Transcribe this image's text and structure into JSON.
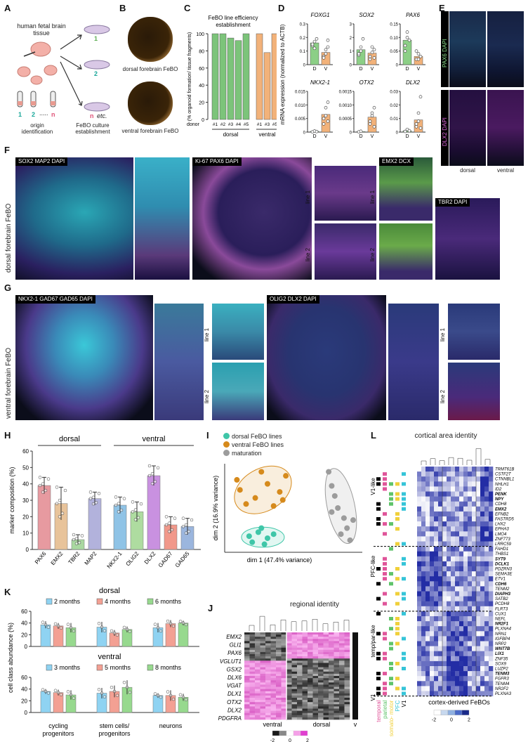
{
  "panels": {
    "A": "A",
    "B": "B",
    "C": "C",
    "D": "D",
    "E": "E",
    "F": "F",
    "G": "G",
    "H": "H",
    "I": "I",
    "J": "J",
    "K": "K",
    "L": "L"
  },
  "A": {
    "tissue": "human fetal brain tissue",
    "n1": "1",
    "n2": "2",
    "dots": ".....",
    "nn": "n",
    "origin": "origin identification",
    "dish_1": "1",
    "dish_2": "2",
    "dish_n": "n",
    "dish_etc": "etc.",
    "culture": "FeBO culture establishment"
  },
  "B": {
    "dorsal": "dorsal forebrain FeBO",
    "ventral": "ventral forebrain FeBO"
  },
  "E": {
    "top_label": "PAX6 DAPI",
    "bottom_label": "DLX2 DAPI",
    "x_dorsal": "dorsal",
    "x_ventral": "ventral"
  },
  "F": {
    "row_label": "dorsal forebrain FeBO",
    "p1_label": "SOX2 MAP2 DAPI",
    "p2_label": "Ki-67 PAX6 DAPI",
    "p3_label": "EMX2 DCX",
    "p4_label": "TBR2 DAPI",
    "line1": "line 1",
    "line2": "line 2"
  },
  "G": {
    "row_label": "ventral forebrain FeBO",
    "p1_label": "NKX2-1 GAD67 GAD65 DAPI",
    "p2_label": "OLIG2 DLX2 DAPI",
    "line1": "line 1",
    "line2": "line 2"
  },
  "I": {
    "legend": [
      "dorsal FeBO lines",
      "ventral FeBO lines",
      "maturation"
    ],
    "xlabel": "dim 1 (47.4% variance)",
    "ylabel": "dim 2 (16.9% variance)"
  },
  "J": {
    "title": "regional identity",
    "genes": [
      "EMX2",
      "GLI1",
      "PAX6",
      "VGLUT1",
      "GSX2",
      "DLX6",
      "VGAT",
      "DLX1",
      "OTX2",
      "DLX2",
      "PDGFRA"
    ],
    "x_ventral": "ventral",
    "x_dorsal": "dorsal",
    "x_v": "v",
    "scale": [
      "-2",
      "0",
      "2"
    ]
  },
  "L": {
    "title": "cortical area identity",
    "groups": [
      "V1-like",
      "PFC-like",
      "temp/par-like",
      "V1"
    ],
    "xlabels": [
      "temporal",
      "parietal",
      "somato- motor",
      "PFC",
      "V1"
    ],
    "xtitle": "cortex-derived FeBOs",
    "scale": [
      "-2",
      "0",
      "2"
    ],
    "genes": [
      "TRMT61B",
      "CSTF2T",
      "CTNNBL1",
      "NHLH1",
      "ID2",
      "PENK",
      "NPY",
      "CDH8",
      "EMX2",
      "EFNB2",
      "FASTRD5",
      "LHX2",
      "EPHA3",
      "LMO4",
      "ZNF773",
      "LRRC59",
      "FAHD1",
      "THBS1",
      "SYT9",
      "DCLK1",
      "PDZRN3",
      "SEMA3E",
      "ETV1",
      "CDH6",
      "TENM2",
      "DIAPH3",
      "SATB2",
      "PCDH8",
      "FLRT3",
      "CUX1",
      "NEFL",
      "NR2F1",
      "PLXNA4",
      "NRN1",
      "IGFBP4",
      "NRP2",
      "WNT7B",
      "LIX1",
      "ZNF35",
      "SOX9",
      "LUZP2",
      "TENM3",
      "FGFR3",
      "TENM4",
      "NR2F2",
      "PLXNA3"
    ],
    "bold_genes": [
      "PENK",
      "NPY",
      "EMX2",
      "SYT9",
      "DCLK1",
      "CDH6",
      "DIAPH3",
      "WNT7B",
      "LIX1",
      "TENM3",
      "NR2F1"
    ]
  },
  "chart_data": [
    {
      "panel": "C",
      "type": "bar",
      "title": "FeBO line efficiency establishment",
      "ylabel": "(% organoid formation/ tissue fragments)",
      "xlabel": "donor",
      "categories": [
        "#1",
        "#2",
        "#3",
        "#4",
        "#5",
        "#1",
        "#3",
        "#5"
      ],
      "groups": [
        "dorsal",
        "ventral"
      ],
      "group_of": [
        0,
        0,
        0,
        0,
        0,
        1,
        1,
        1
      ],
      "values": [
        100,
        100,
        95,
        92,
        100,
        100,
        78,
        100
      ],
      "colors": {
        "dorsal": "#7cc47a",
        "ventral": "#f2b27a"
      },
      "yticks": [
        "0",
        "20",
        "40",
        "60",
        "80",
        "100"
      ],
      "ylim": [
        0,
        100
      ]
    },
    {
      "panel": "D",
      "type": "bar",
      "ylabel": "mRNA expression (normalized to ACTB)",
      "subplots": [
        {
          "gene": "FOXG1",
          "ylim": [
            0,
            0.3
          ],
          "yticks": [
            "0",
            "0.1",
            "0.2",
            "0.3"
          ],
          "categories": [
            "D",
            "V"
          ],
          "values": [
            0.16,
            0.09
          ],
          "points": [
            [
              0.14,
              0.17,
              0.19,
              0.15,
              0.12
            ],
            [
              0.06,
              0.11,
              0.18,
              0.05,
              0.08,
              0.13
            ]
          ]
        },
        {
          "gene": "SOX2",
          "ylim": [
            0,
            3
          ],
          "yticks": [
            "0",
            "1",
            "2",
            "3"
          ],
          "categories": [
            "D",
            "V"
          ],
          "values": [
            1.1,
            0.85
          ],
          "points": [
            [
              0.7,
              1.3,
              1.9,
              0.8,
              1.0
            ],
            [
              0.4,
              0.9,
              1.1,
              0.6,
              1.3,
              0.5
            ]
          ]
        },
        {
          "gene": "PAX6",
          "ylim": [
            0,
            0.15
          ],
          "yticks": [
            "0",
            "0.05",
            "0.10",
            "0.15"
          ],
          "categories": [
            "D",
            "V"
          ],
          "values": [
            0.09,
            0.03
          ],
          "points": [
            [
              0.07,
              0.12,
              0.09,
              0.05,
              0.1
            ],
            [
              0.02,
              0.04,
              0.03,
              0.05,
              0.02
            ]
          ]
        },
        {
          "gene": "NKX2-1",
          "ylim": [
            0,
            0.015
          ],
          "yticks": [
            "0",
            "0.005",
            "0.010",
            "0.015"
          ],
          "categories": [
            "D",
            "V"
          ],
          "values": [
            0.0003,
            0.0065
          ],
          "points": [
            [
              0.0001,
              0.0004,
              0.0002
            ],
            [
              0.003,
              0.009,
              0.011,
              0.005,
              0.006,
              0.004
            ]
          ]
        },
        {
          "gene": "OTX2",
          "ylim": [
            0,
            0.0015
          ],
          "yticks": [
            "0",
            "0.0005",
            "0.0010",
            "0.0015"
          ],
          "categories": [
            "D",
            "V"
          ],
          "values": [
            2e-05,
            0.00055
          ],
          "points": [
            [
              1e-05,
              3e-05
            ],
            [
              0.0003,
              0.0007,
              0.0009,
              0.0004,
              0.0006,
              0.0002
            ]
          ]
        },
        {
          "gene": "DLX2",
          "ylim": [
            0,
            0.03
          ],
          "yticks": [
            "0",
            "0.01",
            "0.02",
            "0.03"
          ],
          "categories": [
            "D",
            "V"
          ],
          "values": [
            0.001,
            0.009
          ],
          "points": [
            [
              0.0005,
              0.002,
              0.001
            ],
            [
              0.004,
              0.014,
              0.026,
              0.006,
              0.008,
              0.003
            ]
          ]
        }
      ]
    },
    {
      "panel": "H",
      "type": "bar",
      "ylabel": "marker composition (%)",
      "groups": [
        "dorsal",
        "ventral"
      ],
      "categories": [
        "PAX6",
        "EMX2",
        "TBR2",
        "MAP2",
        "NKX2-1",
        "OLIG2",
        "DLX2",
        "GAD67",
        "GAD65"
      ],
      "values": [
        39,
        28,
        6,
        31,
        27,
        23,
        45,
        15,
        14
      ],
      "errors": [
        5,
        10,
        3,
        4,
        5,
        6,
        6,
        5,
        5
      ],
      "colors": [
        "#e79aa0",
        "#e8c39a",
        "#a9d8a0",
        "#b2b2dc",
        "#8fc3e6",
        "#aedca0",
        "#c991e0",
        "#f1988a",
        "#9bb6de"
      ],
      "yticks": [
        "0",
        "10",
        "20",
        "30",
        "40",
        "50",
        "60"
      ],
      "ylim": [
        0,
        60
      ]
    },
    {
      "panel": "I",
      "type": "scatter",
      "xlabel": "dim 1 (47.4% variance)",
      "ylabel": "dim 2 (16.9% variance)",
      "series": [
        {
          "name": "dorsal FeBO lines",
          "color": "#3fc6a8",
          "points": [
            [
              -1.2,
              -1.4
            ],
            [
              -0.9,
              -1.2
            ],
            [
              -0.6,
              -1.5
            ],
            [
              -0.8,
              -1.0
            ],
            [
              -1.1,
              -1.7
            ],
            [
              -0.4,
              -1.3
            ],
            [
              -0.7,
              -1.8
            ]
          ]
        },
        {
          "name": "ventral FeBO lines",
          "color": "#d68a1c",
          "points": [
            [
              -1.5,
              0.9
            ],
            [
              -1.0,
              0.5
            ],
            [
              -0.6,
              1.2
            ],
            [
              -0.2,
              0.8
            ],
            [
              -1.3,
              0.2
            ],
            [
              -0.4,
              0.1
            ],
            [
              0.0,
              1.6
            ],
            [
              -0.8,
              1.8
            ],
            [
              -1.6,
              1.4
            ],
            [
              -0.1,
              0.4
            ]
          ]
        },
        {
          "name": "maturation",
          "color": "#9c9c9c",
          "points": [
            [
              1.4,
              1.8
            ],
            [
              1.5,
              1.1
            ],
            [
              1.6,
              0.6
            ],
            [
              1.7,
              0.0
            ],
            [
              1.9,
              -0.5
            ],
            [
              2.0,
              -1.0
            ],
            [
              1.8,
              -1.3
            ],
            [
              2.2,
              -0.6
            ],
            [
              1.5,
              -0.2
            ],
            [
              2.1,
              -1.6
            ]
          ]
        }
      ]
    },
    {
      "panel": "K",
      "type": "bar",
      "ylabel": "cell class abundance (%)",
      "categories": [
        "cycling progenitors",
        "stem cells/ progenitors",
        "neurons"
      ],
      "yticks": [
        "0",
        "20",
        "40",
        "60"
      ],
      "ylim": [
        0,
        60
      ],
      "subplots": [
        {
          "title": "dorsal",
          "series": [
            {
              "name": "2 months",
              "color": "#8fd3f2",
              "values": [
                37,
                33,
                32
              ],
              "errors": [
                6,
                9,
                8
              ]
            },
            {
              "name": "4 months",
              "color": "#f3a093",
              "values": [
                35,
                23,
                39
              ],
              "errors": [
                5,
                5,
                6
              ]
            },
            {
              "name": "6 months",
              "color": "#97d98e",
              "values": [
                32,
                29,
                40
              ],
              "errors": [
                8,
                5,
                4
              ]
            }
          ]
        },
        {
          "title": "ventral",
          "series": [
            {
              "name": "3 months",
              "color": "#8fd3f2",
              "values": [
                36,
                33,
                29
              ],
              "errors": [
                4,
                9,
                4
              ]
            },
            {
              "name": "5 months",
              "color": "#f3a093",
              "values": [
                34,
                36,
                29
              ],
              "errors": [
                5,
                10,
                9
              ]
            },
            {
              "name": "8 months",
              "color": "#97d98e",
              "values": [
                30,
                43,
                26
              ],
              "errors": [
                8,
                12,
                6
              ]
            }
          ]
        }
      ]
    }
  ]
}
